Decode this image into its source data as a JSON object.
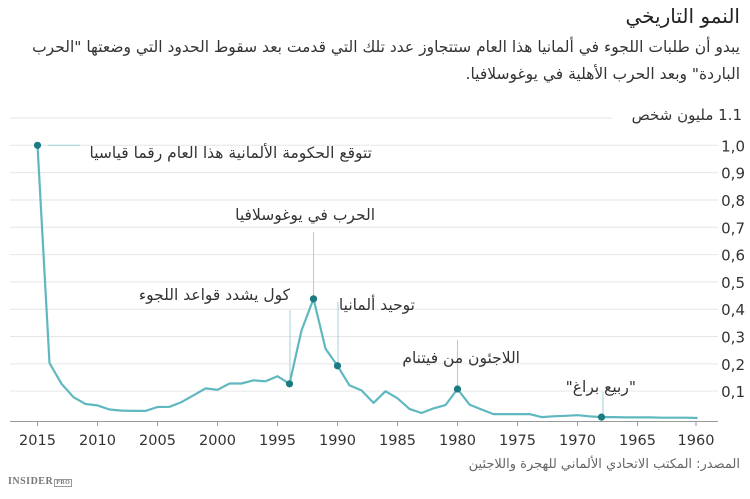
{
  "header": {
    "title": "النمو التاريخي",
    "subtitle": "يبدو أن طلبات اللجوء في ألمانيا هذا العام ستتجاوز عدد تلك التي قدمت بعد سقوط الحدود التي وضعتها \"الحرب الباردة\" وبعد الحرب الأهلية في يوغوسلافيا."
  },
  "footer": {
    "source": "المصدر: المكتب الاتحادي الألماني للهجرة واللاجئين",
    "logo": "INSIDER PRO"
  },
  "colors": {
    "line": "#5fb8bf",
    "marker": "#1b7b80",
    "grid": "#e6e6e6",
    "text": "#333333"
  },
  "chart_data": {
    "type": "line",
    "title": "النمو التاريخي",
    "ylabel": "1.1 مليون شخص",
    "xlabel": "",
    "x_reversed": true,
    "xlim": [
      2015,
      1960
    ],
    "ylim": [
      0,
      1.1
    ],
    "grid": true,
    "x_ticks": [
      2015,
      2010,
      2005,
      2000,
      1995,
      1990,
      1985,
      1980,
      1975,
      1970,
      1965,
      1960
    ],
    "y_ticks": [
      "0,1",
      "0,2",
      "0,3",
      "0,4",
      "0,5",
      "0,6",
      "0,7",
      "0,8",
      "0,9",
      "1,0"
    ],
    "y_tick_values": [
      0.1,
      0.2,
      0.3,
      0.4,
      0.5,
      0.6,
      0.7,
      0.8,
      0.9,
      1.0
    ],
    "unit": "million people",
    "x": [
      2015,
      2014,
      2013,
      2012,
      2011,
      2010,
      2009,
      2008,
      2007,
      2006,
      2005,
      2004,
      2003,
      2002,
      2001,
      2000,
      1999,
      1998,
      1997,
      1996,
      1995,
      1994,
      1993,
      1992,
      1991,
      1990,
      1989,
      1988,
      1987,
      1986,
      1985,
      1984,
      1983,
      1982,
      1981,
      1980,
      1979,
      1978,
      1977,
      1976,
      1975,
      1974,
      1973,
      1972,
      1971,
      1970,
      1969,
      1968,
      1967,
      1966,
      1965,
      1964,
      1963,
      1962,
      1961,
      1960
    ],
    "values": [
      1.0,
      0.203,
      0.127,
      0.078,
      0.053,
      0.048,
      0.033,
      0.029,
      0.028,
      0.028,
      0.042,
      0.043,
      0.06,
      0.085,
      0.11,
      0.105,
      0.128,
      0.128,
      0.14,
      0.136,
      0.155,
      0.127,
      0.322,
      0.438,
      0.256,
      0.193,
      0.121,
      0.103,
      0.057,
      0.1,
      0.074,
      0.035,
      0.02,
      0.037,
      0.049,
      0.108,
      0.051,
      0.033,
      0.016,
      0.016,
      0.016,
      0.016,
      0.005,
      0.008,
      0.01,
      0.012,
      0.008,
      0.005,
      0.005,
      0.004,
      0.004,
      0.004,
      0.003,
      0.003,
      0.003,
      0.002
    ],
    "annotations": [
      {
        "x": 2015,
        "y": 1.0,
        "text": "تتوقع الحكومة الألمانية هذا العام رقما قياسيا"
      },
      {
        "x": 1992,
        "y": 0.438,
        "text": "الحرب في يوغوسلافيا"
      },
      {
        "x": 1994,
        "y": 0.127,
        "text": "كول يشدد قواعد اللجوء"
      },
      {
        "x": 1990,
        "y": 0.193,
        "text": "توحيد ألمانيا"
      },
      {
        "x": 1980,
        "y": 0.108,
        "text": "اللاجئون من فيتنام"
      },
      {
        "x": 1968,
        "y": 0.005,
        "text": "\"ربيع براغ\""
      }
    ]
  }
}
